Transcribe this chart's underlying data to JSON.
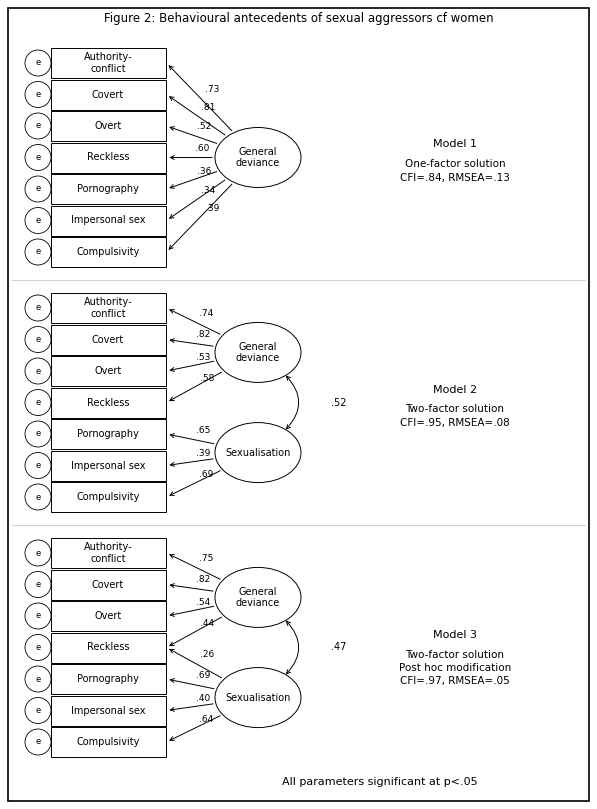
{
  "title": "Figure 2: Behavioural antecedents of sexual aggressors cf women",
  "title_fontsize": 8.5,
  "models": [
    {
      "name": "Model 1",
      "subtitle": "One-factor solution\nCFI=.84, RMSEA=.13",
      "items": [
        "Authority-\nconflict",
        "Covert",
        "Overt",
        "Reckless",
        "Pornography",
        "Impersonal sex",
        "Compulsivity"
      ],
      "factors": [
        "General\ndeviance"
      ],
      "loadings": [
        {
          "from": 0,
          "to_factor": 0,
          "weight": ".73"
        },
        {
          "from": 1,
          "to_factor": 0,
          "weight": ".81"
        },
        {
          "from": 2,
          "to_factor": 0,
          "weight": ".52"
        },
        {
          "from": 3,
          "to_factor": 0,
          "weight": ".60"
        },
        {
          "from": 4,
          "to_factor": 0,
          "weight": ".36"
        },
        {
          "from": 5,
          "to_factor": 0,
          "weight": ".34"
        },
        {
          "from": 6,
          "to_factor": 0,
          "weight": ".39"
        }
      ],
      "correlations": []
    },
    {
      "name": "Model 2",
      "subtitle": "Two-factor solution\nCFI=.95, RMSEA=.08",
      "items": [
        "Authority-\nconflict",
        "Covert",
        "Overt",
        "Reckless",
        "Pornography",
        "Impersonal sex",
        "Compulsivity"
      ],
      "factors": [
        "General\ndeviance",
        "Sexualisation"
      ],
      "loadings": [
        {
          "from": 0,
          "to_factor": 0,
          "weight": ".74"
        },
        {
          "from": 1,
          "to_factor": 0,
          "weight": ".82"
        },
        {
          "from": 2,
          "to_factor": 0,
          "weight": ".53"
        },
        {
          "from": 3,
          "to_factor": 0,
          "weight": ".58"
        },
        {
          "from": 4,
          "to_factor": 1,
          "weight": ".65"
        },
        {
          "from": 5,
          "to_factor": 1,
          "weight": ".39"
        },
        {
          "from": 6,
          "to_factor": 1,
          "weight": ".69"
        }
      ],
      "correlations": [
        {
          "f1": 0,
          "f2": 1,
          "weight": ".52"
        }
      ]
    },
    {
      "name": "Model 3",
      "subtitle": "Two-factor solution\nPost hoc modification\nCFI=.97, RMSEA=.05",
      "items": [
        "Authority-\nconflict",
        "Covert",
        "Overt",
        "Reckless",
        "Pornography",
        "Impersonal sex",
        "Compulsivity"
      ],
      "factors": [
        "General\ndeviance",
        "Sexualisation"
      ],
      "loadings": [
        {
          "from": 0,
          "to_factor": 0,
          "weight": ".75"
        },
        {
          "from": 1,
          "to_factor": 0,
          "weight": ".82"
        },
        {
          "from": 2,
          "to_factor": 0,
          "weight": ".54"
        },
        {
          "from": 3,
          "to_factor": 0,
          "weight": ".44"
        },
        {
          "from": 3,
          "to_factor": 1,
          "weight": ".26"
        },
        {
          "from": 4,
          "to_factor": 1,
          "weight": ".69"
        },
        {
          "from": 5,
          "to_factor": 1,
          "weight": ".40"
        },
        {
          "from": 6,
          "to_factor": 1,
          "weight": ".64"
        }
      ],
      "correlations": [
        {
          "f1": 0,
          "f2": 1,
          "weight": ".47"
        }
      ]
    }
  ],
  "footer": "All parameters significant at p<.05"
}
